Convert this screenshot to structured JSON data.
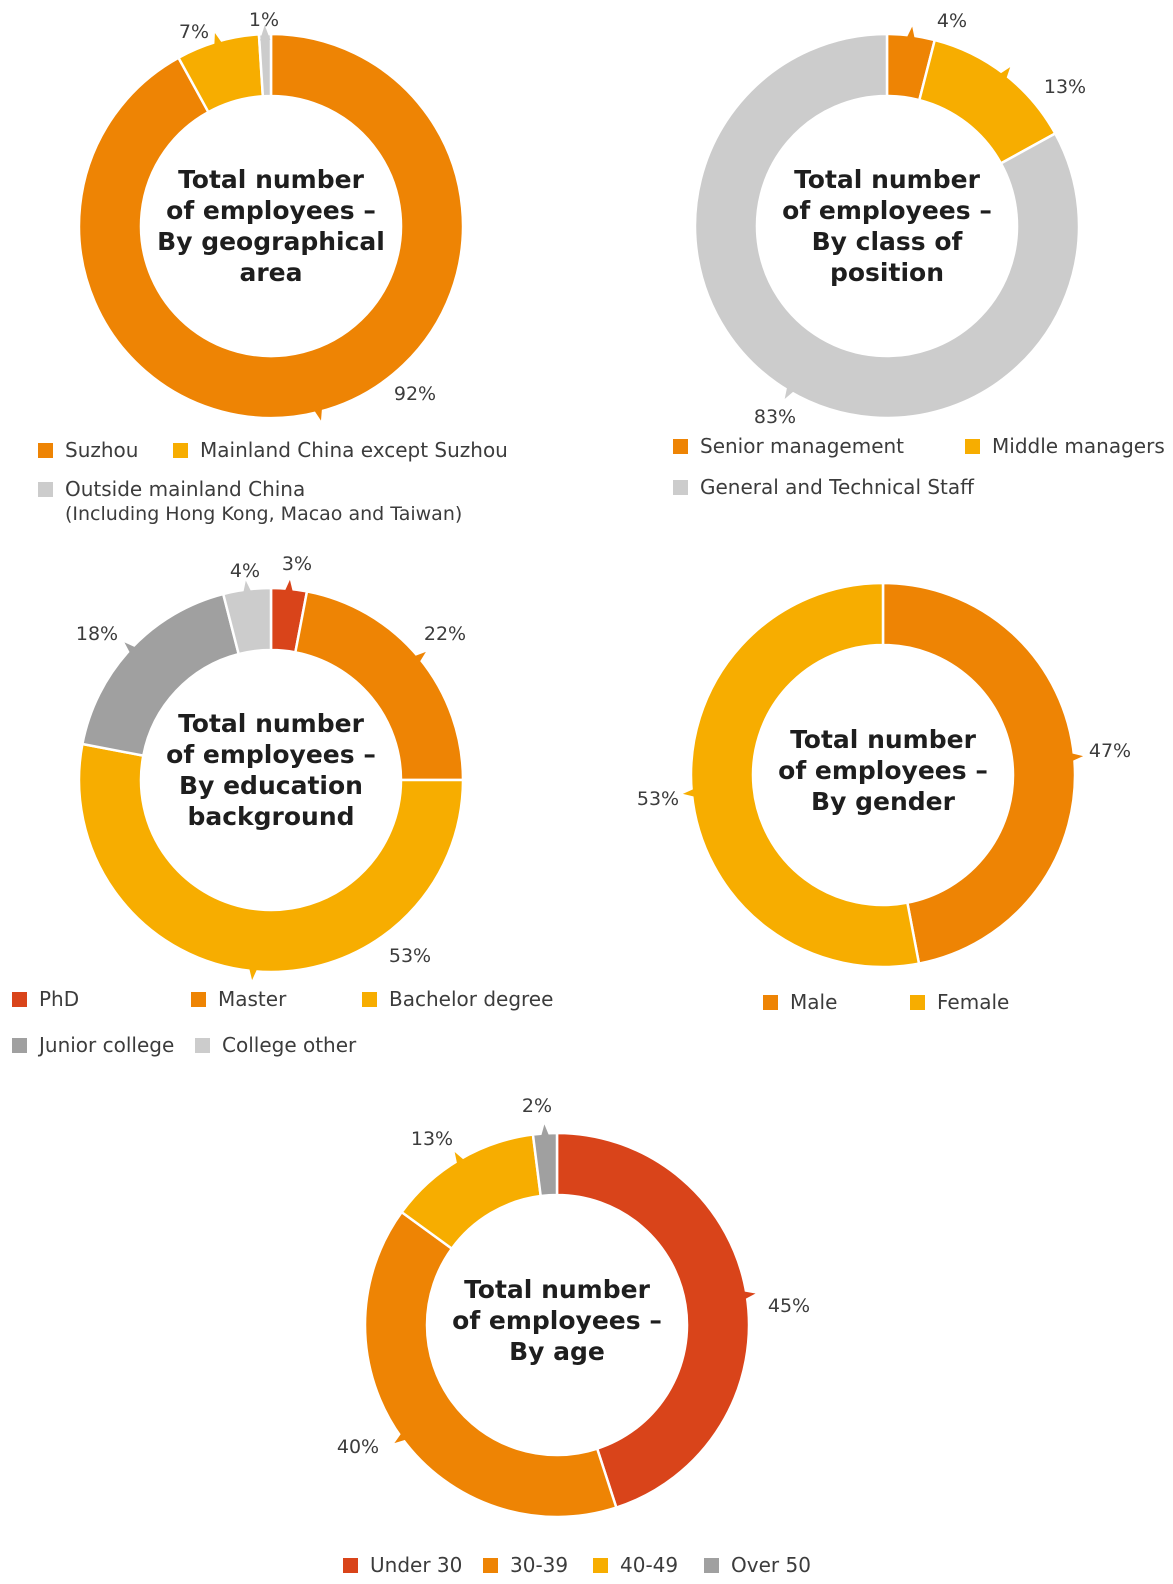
{
  "colors": {
    "red": "#d9441a",
    "orange": "#ee8404",
    "yellow": "#f7ad00",
    "gray": "#a0a0a0",
    "lightgray": "#cccccc"
  },
  "chart_data": [
    {
      "id": "geo",
      "type": "pie",
      "title_lines": [
        "Total number",
        "of employees –",
        "By geographical",
        "area"
      ],
      "slices": [
        {
          "name": "Suzhou",
          "value": 92,
          "label": "92%",
          "color": "#ee8404"
        },
        {
          "name": "Mainland China except Suzhou",
          "value": 7,
          "label": "7%",
          "color": "#f7ad00"
        },
        {
          "name": "Outside mainland China",
          "name_sub": "(Including Hong Kong, Macao and Taiwan)",
          "value": 1,
          "label": "1%",
          "color": "#cccccc"
        }
      ]
    },
    {
      "id": "position",
      "type": "pie",
      "title_lines": [
        "Total number",
        "of employees –",
        "By class of",
        "position"
      ],
      "slices": [
        {
          "name": "Senior management",
          "value": 4,
          "label": "4%",
          "color": "#ee8404"
        },
        {
          "name": "Middle managers",
          "value": 13,
          "label": "13%",
          "color": "#f7ad00"
        },
        {
          "name": "General and Technical Staff",
          "value": 83,
          "label": "83%",
          "color": "#cccccc"
        }
      ]
    },
    {
      "id": "education",
      "type": "pie",
      "title_lines": [
        "Total number",
        "of employees –",
        "By education",
        "background"
      ],
      "slices": [
        {
          "name": "PhD",
          "value": 3,
          "label": "3%",
          "color": "#d9441a"
        },
        {
          "name": "Master",
          "value": 22,
          "label": "22%",
          "color": "#ee8404"
        },
        {
          "name": "Bachelor degree",
          "value": 53,
          "label": "53%",
          "color": "#f7ad00"
        },
        {
          "name": "Junior college",
          "value": 18,
          "label": "18%",
          "color": "#a0a0a0"
        },
        {
          "name": "College other",
          "value": 4,
          "label": "4%",
          "color": "#cccccc"
        }
      ]
    },
    {
      "id": "gender",
      "type": "pie",
      "title_lines": [
        "Total number",
        "of employees –",
        "By gender"
      ],
      "slices": [
        {
          "name": "Male",
          "value": 47,
          "label": "47%",
          "color": "#ee8404"
        },
        {
          "name": "Female",
          "value": 53,
          "label": "53%",
          "color": "#f7ad00"
        }
      ]
    },
    {
      "id": "age",
      "type": "pie",
      "title_lines": [
        "Total number",
        "of employees –",
        "By age"
      ],
      "slices": [
        {
          "name": "Under 30",
          "value": 45,
          "label": "45%",
          "color": "#d9441a"
        },
        {
          "name": "30-39",
          "value": 40,
          "label": "40%",
          "color": "#ee8404"
        },
        {
          "name": "40-49",
          "value": 13,
          "label": "13%",
          "color": "#f7ad00"
        },
        {
          "name": "Over 50",
          "value": 2,
          "label": "2%",
          "color": "#a0a0a0"
        }
      ]
    }
  ]
}
